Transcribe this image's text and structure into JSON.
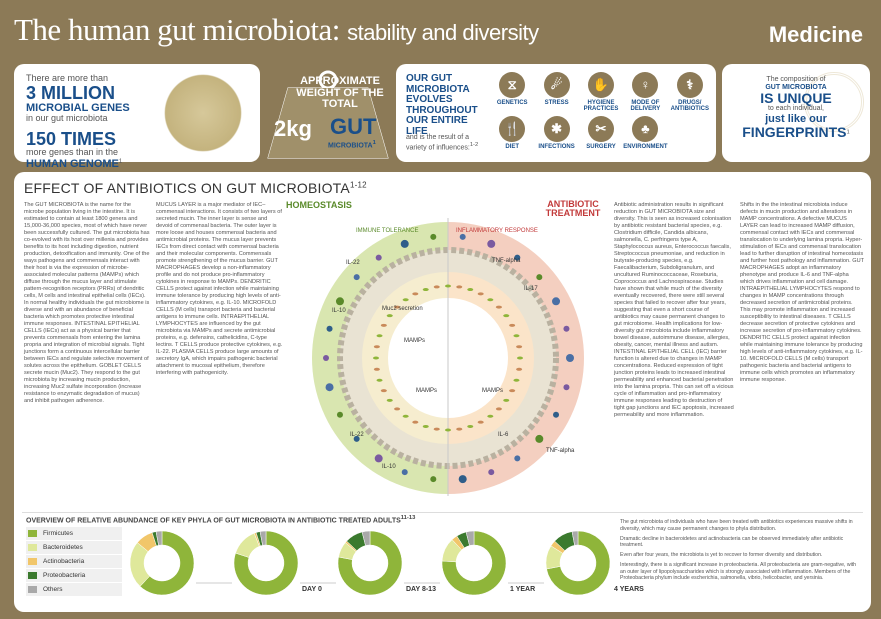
{
  "header": {
    "title_main": "The human gut microbiota:",
    "title_sub": "stability and diversity",
    "logo": "Medicine"
  },
  "genes": {
    "line1": "There are more than",
    "big1": "3 MILLION",
    "mid1": "MICROBIAL GENES",
    "line2": "in our gut microbiota",
    "big2": "150 TIMES",
    "line3": "more genes than in the",
    "mid2": "HUMAN GENOME",
    "sup": "1"
  },
  "weight": {
    "label": "APPROXIMATE WEIGHT OF THE TOTAL",
    "kg": "2kg",
    "gut": "GUT",
    "microbiota": "MICROBIOTA",
    "sup": "1"
  },
  "life": {
    "head": "OUR GUT MICROBIOTA EVOLVES THROUGHOUT OUR ENTIRE LIFE",
    "sub": "and is the result of a variety of influences:",
    "sup": "1-2",
    "influences": [
      {
        "label": "GENETICS",
        "icon": "dna-icon",
        "glyph": "⧖"
      },
      {
        "label": "STRESS",
        "icon": "stress-icon",
        "glyph": "☄"
      },
      {
        "label": "HYGIENE PRACTICES",
        "icon": "hygiene-icon",
        "glyph": "✋"
      },
      {
        "label": "MODE OF DELIVERY",
        "icon": "delivery-icon",
        "glyph": "♀"
      },
      {
        "label": "DRUGS/ ANTIBIOTICS",
        "icon": "drugs-icon",
        "glyph": "⚕"
      },
      {
        "label": "DIET",
        "icon": "diet-icon",
        "glyph": "🍴"
      },
      {
        "label": "INFECTIONS",
        "icon": "infection-icon",
        "glyph": "✱"
      },
      {
        "label": "SURGERY",
        "icon": "surgery-icon",
        "glyph": "✂"
      },
      {
        "label": "ENVIRONMENT",
        "icon": "environment-icon",
        "glyph": "♣"
      }
    ]
  },
  "unique": {
    "line1": "The composition of",
    "blue1": "GUT MICROBIOTA",
    "big1": "IS UNIQUE",
    "line2": "to each individual,",
    "blue2": "just like our",
    "big2": "FINGERPRINTS",
    "sup": "1"
  },
  "main": {
    "title": "EFFECT OF ANTIBIOTICS ON GUT MICROBIOTA",
    "title_sup": "1-12",
    "col1": "The GUT MICROBIOTA is the name for the microbe population living in the intestine. It is estimated to contain at least 1800 genera and 15,000-36,000 species, most of which have never been successfully cultured. The gut microbiota has co-evolved with its host over millenia and provides benefits to its host including digestion, nutrient production, detoxification and immunity. One of the ways pathogens and commensals interact with their host is via the expression of microbe-associated molecular patterns (MAMPs) which diffuse through the mucus layer and stimulate pattern-recognition receptors (PRRs) of dendritic cells, M cells and intestinal epithelial cells (IECs). In normal healthy individuals the gut microbiome is diverse and with an abundance of beneficial bacteria which promotes protective intestinal immune responses. INTESTINAL EPITHELIAL CELLS (IECs) act as a physical barrier that prevents commensals from entering the lamina propria and integration of microbial signals. Tight junctions form a continuous intercellular barrier between IECs and regulate selective movement of solutes across the epithelium. GOBLET CELLS secrete mucin (Muc2). They respond to the gut microbiota by increasing mucin production, increasing Muc2 sulfate incorporation (increase resistance to enzymatic degradation of mucus) and inhibit pathogen adherence.",
    "col2": "MUCUS LAYER is a major mediator of IEC–commensal interactions. It consists of two layers of secreted mucin. The inner layer is sense and devoid of commensal bacteria. The outer layer is more loose and houses commensal bacteria and antimicrobial proteins. The mucus layer prevents IECs from direct contact with commensal bacteria and their molecular components. Commensals promote strengthening of the mucus barrier. GUT MACROPHAGES develop a non-inflammatory profile and do not produce pro-inflammatory cytokines in response to MAMPs. DENDRITIC CELLS protect against infection while maintaining immune tolerance by producing high levels of anti-inflammatory cytokines, e.g. IL-10. MICROFOLD CELLS (M cells) transport bacteria and bacterial antigens to immune cells. INTRAEPITHELIAL LYMPHOCYTES are influenced by the gut microbiota via MAMPs and secrete antimicrobial proteins, e.g. defensins, cathelicidins, C-type lectins. T CELLS produce protective cytokines, e.g. IL-22. PLASMA CELLS produce large amounts of secretory IgA, which impairs pathogenic bacterial attachment to mucosal epithelium, therefore interfering with pathogenicity.",
    "col3": "Antibiotic administration results in significant reduction in GUT MICROBIOTA size and diversity. This is seen as increased colonisation by antibiotic resistant bacterial species, e.g. Clostridium difficile, Candida albicans, salmonella, C. perfringens type A, Staphylococcus aureus, Enterococcus faecalis, Streptococcus pneumoniae, and reduction in butyrate-producing species, e.g. Faecalibacterium, Subdoligranulum, and uncultured Ruminococcaceae, Roseburia, Coprococcus and Lachnospiraceae. Studies have shown that while much of the diversity eventually recovered, there were still several species that failed to recover after four years, suggesting that even a short course of antibiotics may cause permanent changes to gut microbiome. Health implications for low-diversity gut microbiota include inflammatory bowel disease, autoimmune disease, allergies, obesity, cancer, mental illness and autism. INTESTINAL EPITHELIAL CELL (IEC) barrier function is altered due to changes in MAMP concentrations. Reduced expression of tight junction proteins leads to increased intestinal permeability and enhanced bacterial penetration into the lamina propria. This can set off a vicious cycle of inflammation and pro-inflammatory immune responses leading to destruction of tight gap junctions and IEC apoptosis, increased permeability and more inflammation.",
    "col4": "Shifts in the the intestinal microbiota induce defects in mucin production and alterations in MAMP concentrations. A defective MUCUS LAYER can lead to increased MAMP diffusion, commensal contact with IECs and commensal translocation to underlying lamina propria. Hyper-stimulation of IECs and commensal translocation lead to further disruption of intestinal homeostasis and further host pathology and inflammation. GUT MACROPHAGES adopt an inflammatory phenotype and produce IL-6 and TNF-alpha which drives inflammation and cell damage. INTRAEPITHELIAL LYMPHOCYTES respond to changes in MAMP concentrations through decreased secretion of antimicrobial proteins. This may promote inflammation and increased susceptibility to intestinal diseases. T CELLS decrease secretion of protective cytokines and increase secretion of pro-inflammatory cytokines. DENDRITIC CELLS protect against infection while maintaining immune tolerance by producing high levels of anti-inflammatory cytokines, e.g. IL-10. MICROFOLD CELLS (M cells) transport pathogenic bacteria and bacterial antigens to immune cells which promotes an inflammatory immune response.",
    "diagram": {
      "homeostasis": "HOMEOSTASIS",
      "antibiotic": "ANTIBIOTIC TREATMENT",
      "immune_tolerance": "IMMUNE TOLERANCE",
      "inflammatory": "INFLAMMATORY RESPONSE",
      "labels": [
        "IL-22",
        "IL-10",
        "Muc2 secretion",
        "MAMPs",
        "MAMPs",
        "MAMPs",
        "TNF-alpha",
        "IL-17",
        "IL-6",
        "IL-22",
        "IL-10",
        "TNF-alpha"
      ]
    }
  },
  "overview": {
    "title": "OVERVIEW OF RELATIVE ABUNDANCE OF KEY PHYLA OF GUT MICROBIOTA IN ANTIBIOTIC TREATED ADULTS",
    "title_sup": "11-13",
    "legend": [
      {
        "name": "Firmicutes",
        "color": "#8fb53a"
      },
      {
        "name": "Bacteroidetes",
        "color": "#dfe89b"
      },
      {
        "name": "Actinobacteria",
        "color": "#f1c66a"
      },
      {
        "name": "Proteobacteria",
        "color": "#3b7a2e"
      },
      {
        "name": "Others",
        "color": "#a9a9a9"
      }
    ],
    "notes": [
      "The gut microbiota of individuals who have been treated with antibiotics experiences massive shifts in diversity, which may cause permanent changes to phyla distribution.",
      "Dramatic decline in bacteroidetes and actinobacteria can be observed immediately after antibiotic treatment.",
      "Even after four years, the microbiota is yet to recover to former diversity and distribution.",
      "Interestingly, there is a significant increase in proteobacteria. All proteobacteria are gram-negative, with an outer layer of lipopolysaccharides which is strongly associated with inflammation. Members of the Proteobacteria phylum include escherichia, salmonella, vibrio, helicobacter, and yersinia."
    ]
  },
  "chart_data": {
    "type": "pie",
    "title": "OVERVIEW OF RELATIVE ABUNDANCE OF KEY PHYLA OF GUT MICROBIOTA IN ANTIBIOTIC TREATED ADULTS",
    "categories": [
      "Firmicutes",
      "Bacteroidetes",
      "Actinobacteria",
      "Proteobacteria",
      "Others"
    ],
    "pies": [
      {
        "label": "",
        "values": [
          62,
          24,
          9,
          2,
          3
        ]
      },
      {
        "label": "DAY 0",
        "values": [
          80,
          14,
          1,
          2,
          3
        ]
      },
      {
        "label": "DAY 8-13",
        "values": [
          78,
          8,
          1,
          9,
          4
        ]
      },
      {
        "label": "1 YEAR",
        "values": [
          76,
          12,
          3,
          5,
          4
        ]
      },
      {
        "label": "4 YEARS",
        "values": [
          72,
          12,
          3,
          10,
          3
        ]
      }
    ]
  }
}
